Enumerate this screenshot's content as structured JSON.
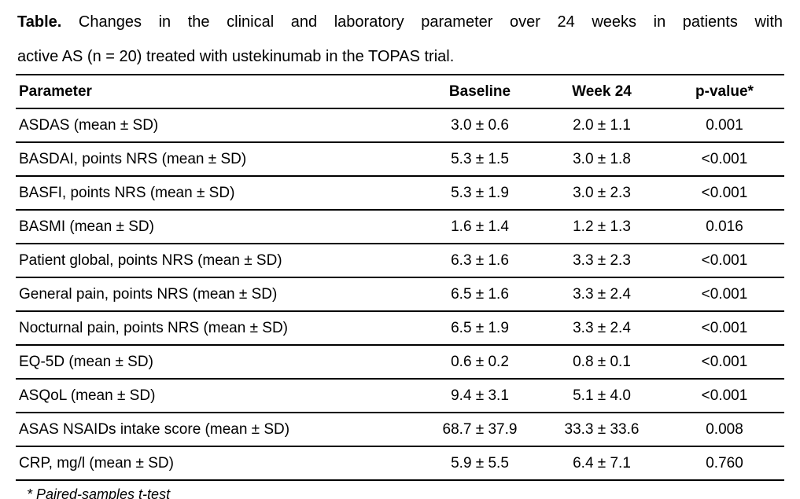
{
  "title": {
    "label": "Table.",
    "line1_rest": "Changes in the clinical and laboratory parameter over 24 weeks in patients with",
    "line2": "active AS (n = 20) treated with ustekinumab in the TOPAS trial."
  },
  "table": {
    "columns": [
      "Parameter",
      "Baseline",
      "Week 24",
      "p-value*"
    ],
    "rows": [
      {
        "parameter": "ASDAS (mean ± SD)",
        "baseline": "3.0 ± 0.6",
        "week24": "2.0 ± 1.1",
        "p_value": "0.001"
      },
      {
        "parameter": "BASDAI, points NRS (mean ± SD)",
        "baseline": "5.3 ± 1.5",
        "week24": "3.0 ± 1.8",
        "p_value": "<0.001"
      },
      {
        "parameter": "BASFI, points NRS (mean ± SD)",
        "baseline": "5.3 ± 1.9",
        "week24": "3.0 ± 2.3",
        "p_value": "<0.001"
      },
      {
        "parameter": "BASMI (mean ± SD)",
        "baseline": "1.6 ± 1.4",
        "week24": "1.2 ± 1.3",
        "p_value": "0.016"
      },
      {
        "parameter": "Patient global, points NRS (mean ± SD)",
        "baseline": "6.3 ± 1.6",
        "week24": "3.3 ± 2.3",
        "p_value": "<0.001"
      },
      {
        "parameter": "General pain, points NRS (mean ± SD)",
        "baseline": "6.5 ± 1.6",
        "week24": "3.3 ± 2.4",
        "p_value": "<0.001"
      },
      {
        "parameter": "Nocturnal pain, points NRS (mean ± SD)",
        "baseline": "6.5 ± 1.9",
        "week24": "3.3 ± 2.4",
        "p_value": "<0.001"
      },
      {
        "parameter": "EQ-5D (mean ± SD)",
        "baseline": "0.6 ± 0.2",
        "week24": "0.8 ± 0.1",
        "p_value": "<0.001"
      },
      {
        "parameter": "ASQoL (mean ± SD)",
        "baseline": "9.4 ± 3.1",
        "week24": "5.1 ± 4.0",
        "p_value": "<0.001"
      },
      {
        "parameter": "ASAS NSAIDs intake score (mean ± SD)",
        "baseline": "68.7 ± 37.9",
        "week24": "33.3 ± 33.6",
        "p_value": "0.008"
      },
      {
        "parameter": "CRP, mg/l (mean ± SD)",
        "baseline": "5.9 ± 5.5",
        "week24": "6.4 ± 7.1",
        "p_value": "0.760"
      }
    ]
  },
  "footnote": "* Paired-samples t-test"
}
